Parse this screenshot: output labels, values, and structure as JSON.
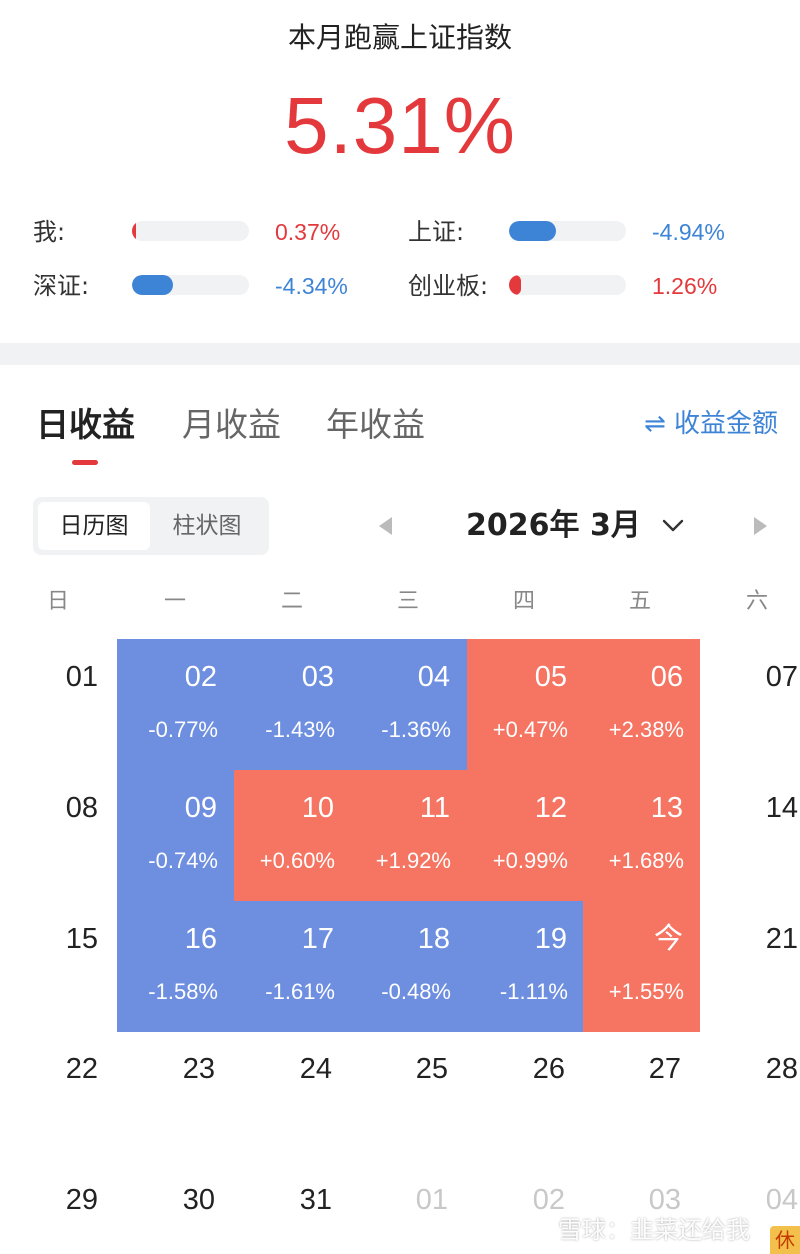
{
  "summary": {
    "title": "本月跑赢上证指数",
    "value": "5.31%",
    "value_color": "#e4393c",
    "comparisons": [
      {
        "label": "我:",
        "value": "0.37%",
        "color": "#e4393c",
        "fill_ratio": 0.03
      },
      {
        "label": "上证:",
        "value": "-4.94%",
        "color": "#3e84d6",
        "fill_ratio": 0.4
      },
      {
        "label": "深证:",
        "value": "-4.34%",
        "color": "#3e84d6",
        "fill_ratio": 0.35
      },
      {
        "label": "创业板:",
        "value": "1.26%",
        "color": "#e4393c",
        "fill_ratio": 0.1
      }
    ]
  },
  "tabs": {
    "items": [
      "日收益",
      "月收益",
      "年收益"
    ],
    "active_index": 0
  },
  "toggle_amount": {
    "icon": "swap-arrows-icon",
    "label": "⇌ 收益金额"
  },
  "view_switch": {
    "options": [
      "日历图",
      "柱状图"
    ],
    "active_index": 0
  },
  "month_nav": {
    "label": "2026年 3月",
    "prev_icon": "caret-left-icon",
    "next_icon": "caret-right-icon",
    "dropdown_icon": "chevron-down-icon"
  },
  "calendar": {
    "weekdays": [
      "日",
      "一",
      "二",
      "三",
      "四",
      "五",
      "六"
    ],
    "colors": {
      "gain": "#f57462",
      "loss": "#6e8fe0"
    },
    "weeks": [
      [
        {
          "day": "01"
        },
        {
          "day": "02",
          "pct": "-0.77%",
          "state": "loss"
        },
        {
          "day": "03",
          "pct": "-1.43%",
          "state": "loss"
        },
        {
          "day": "04",
          "pct": "-1.36%",
          "state": "loss"
        },
        {
          "day": "05",
          "pct": "+0.47%",
          "state": "gain"
        },
        {
          "day": "06",
          "pct": "+2.38%",
          "state": "gain"
        },
        {
          "day": "07"
        }
      ],
      [
        {
          "day": "08"
        },
        {
          "day": "09",
          "pct": "-0.74%",
          "state": "loss"
        },
        {
          "day": "10",
          "pct": "+0.60%",
          "state": "gain"
        },
        {
          "day": "11",
          "pct": "+1.92%",
          "state": "gain"
        },
        {
          "day": "12",
          "pct": "+0.99%",
          "state": "gain"
        },
        {
          "day": "13",
          "pct": "+1.68%",
          "state": "gain"
        },
        {
          "day": "14"
        }
      ],
      [
        {
          "day": "15"
        },
        {
          "day": "16",
          "pct": "-1.58%",
          "state": "loss"
        },
        {
          "day": "17",
          "pct": "-1.61%",
          "state": "loss"
        },
        {
          "day": "18",
          "pct": "-0.48%",
          "state": "loss"
        },
        {
          "day": "19",
          "pct": "-1.11%",
          "state": "loss"
        },
        {
          "day": "今",
          "pct": "+1.55%",
          "state": "gain"
        },
        {
          "day": "21"
        }
      ],
      [
        {
          "day": "22"
        },
        {
          "day": "23"
        },
        {
          "day": "24"
        },
        {
          "day": "25"
        },
        {
          "day": "26"
        },
        {
          "day": "27"
        },
        {
          "day": "28"
        }
      ],
      [
        {
          "day": "29"
        },
        {
          "day": "30"
        },
        {
          "day": "31"
        },
        {
          "day": "01",
          "dim": true
        },
        {
          "day": "02",
          "dim": true
        },
        {
          "day": "03",
          "dim": true
        },
        {
          "day": "04",
          "dim": true
        }
      ]
    ]
  },
  "watermark": {
    "text": "雪球：韭菜还给我",
    "badge": "休"
  }
}
